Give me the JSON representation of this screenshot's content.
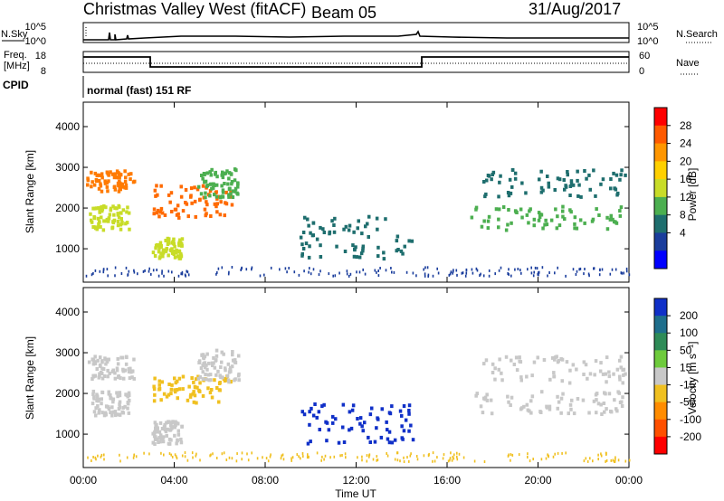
{
  "header": {
    "station": "Christmas Valley West (fitACF)",
    "beam": "Beam 05",
    "date": "31/Aug/2017"
  },
  "top_panels": {
    "nsky_label": "N.Sky",
    "nsearch_label": "N.Search",
    "noise_ticks": [
      "10^5",
      "10^0"
    ],
    "freq_label": "Freq.",
    "freq_unit": "[MHz]",
    "freq_ticks": [
      "18",
      "8"
    ],
    "nave_label": "Nave",
    "nave_ticks": [
      "60",
      "0"
    ],
    "cpid_label": "CPID",
    "cpid_text": "normal (fast) 151 RF"
  },
  "colorbars": {
    "power": {
      "label": "Power [dB]",
      "ticks": [
        "28",
        "24",
        "20",
        "16",
        "12",
        "8",
        "4"
      ],
      "colors": [
        "#ff0000",
        "#ff5a00",
        "#ff9600",
        "#ffd000",
        "#c8dc28",
        "#4caf50",
        "#1e6e6e",
        "#1a3d9c",
        "#0000ff"
      ]
    },
    "velocity": {
      "label": "Velocity [m s⁻¹]",
      "ticks": [
        "200",
        "100",
        "50",
        "15",
        "-15",
        "-50",
        "-100",
        "-200"
      ],
      "colors": [
        "#1030c8",
        "#1e6e8c",
        "#2e8b57",
        "#6ecb3c",
        "#c8c8c8",
        "#f0c020",
        "#ff8c00",
        "#ff5000",
        "#ff0000"
      ]
    }
  },
  "chart_data": [
    {
      "type": "heatmap",
      "name": "power",
      "ylabel": "Slant Range [km]",
      "yticks": [
        "4000",
        "3000",
        "2000",
        "1000"
      ],
      "ylim": [
        180,
        4600
      ],
      "xlim": [
        0,
        24
      ],
      "series": [
        {
          "t0": 0.1,
          "t1": 2.2,
          "r0": 2450,
          "r1": 2950,
          "color": "#ff7a00"
        },
        {
          "t0": 0.2,
          "t1": 2.0,
          "r0": 1500,
          "r1": 2100,
          "color": "#c8dc28"
        },
        {
          "t0": 3.0,
          "t1": 6.5,
          "r0": 1800,
          "r1": 2600,
          "color": "#ff6a00"
        },
        {
          "t0": 5.0,
          "t1": 6.8,
          "r0": 2300,
          "r1": 3000,
          "color": "#4caf50"
        },
        {
          "t0": 3.0,
          "t1": 4.3,
          "r0": 800,
          "r1": 1300,
          "color": "#c8dc28"
        },
        {
          "t0": 9.5,
          "t1": 14.5,
          "r0": 800,
          "r1": 1900,
          "color": "#1e6e6e"
        },
        {
          "t0": 17.5,
          "t1": 23.8,
          "r0": 2300,
          "r1": 3000,
          "color": "#1e6e6e"
        },
        {
          "t0": 17.0,
          "t1": 23.8,
          "r0": 1500,
          "r1": 2100,
          "color": "#4caf50"
        }
      ]
    },
    {
      "type": "heatmap",
      "name": "velocity",
      "ylabel": "Slant Range [km]",
      "xlabel": "Time UT",
      "xticks": [
        "00:00",
        "04:00",
        "08:00",
        "12:00",
        "16:00",
        "20:00",
        "00:00"
      ],
      "yticks": [
        "4000",
        "3000",
        "2000",
        "1000"
      ],
      "ylim": [
        180,
        4600
      ],
      "xlim": [
        0,
        24
      ],
      "series": [
        {
          "t0": 0.1,
          "t1": 2.2,
          "r0": 2400,
          "r1": 2950,
          "color": "#c8c8c8"
        },
        {
          "t0": 0.3,
          "t1": 2.0,
          "r0": 1500,
          "r1": 2100,
          "color": "#c8c8c8"
        },
        {
          "t0": 3.0,
          "t1": 6.5,
          "r0": 1800,
          "r1": 2500,
          "color": "#f0c020"
        },
        {
          "t0": 5.0,
          "t1": 6.8,
          "r0": 2300,
          "r1": 3100,
          "color": "#c8c8c8"
        },
        {
          "t0": 3.0,
          "t1": 4.3,
          "r0": 800,
          "r1": 1350,
          "color": "#c8c8c8"
        },
        {
          "t0": 9.5,
          "t1": 14.5,
          "r0": 800,
          "r1": 1800,
          "color": "#1030c8"
        },
        {
          "t0": 17.5,
          "t1": 23.8,
          "r0": 2300,
          "r1": 2950,
          "color": "#c8c8c8"
        },
        {
          "t0": 17.0,
          "t1": 23.8,
          "r0": 1500,
          "r1": 2100,
          "color": "#c8c8c8"
        }
      ]
    }
  ]
}
